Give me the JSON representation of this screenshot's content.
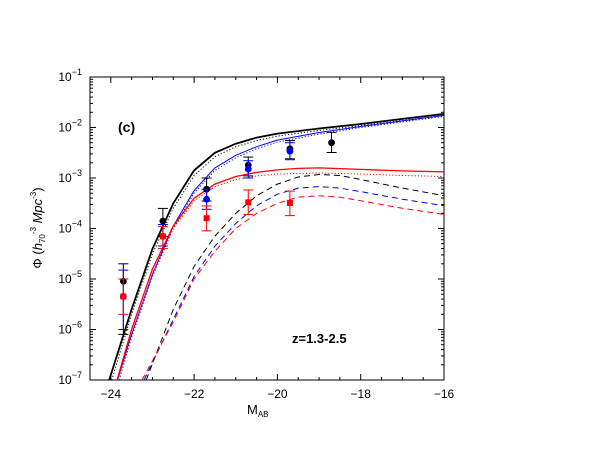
{
  "chart_data": {
    "type": "scatter",
    "panel_label": "(c)",
    "annotation": "z=1.3-2.5",
    "xlabel": {
      "main": "M",
      "sub": "AB"
    },
    "ylabel": {
      "parts": [
        "Φ (",
        "h",
        "70",
        "-3",
        " Mpc",
        "-3",
        ")"
      ]
    },
    "xlim": [
      -24.5,
      -16
    ],
    "ylim_log10": [
      -7,
      -1
    ],
    "y_scale": "log",
    "x_ticks": [
      -24,
      -22,
      -20,
      -18,
      -16
    ],
    "x_tick_labels": [
      "−24",
      "−22",
      "−20",
      "−18",
      "−16"
    ],
    "y_ticks_log10": [
      -7,
      -6,
      -5,
      -4,
      -3,
      -2,
      -1
    ],
    "y_tick_labels": [
      {
        "base": "10",
        "exp": "−7"
      },
      {
        "base": "10",
        "exp": "−6"
      },
      {
        "base": "10",
        "exp": "−5"
      },
      {
        "base": "10",
        "exp": "−4"
      },
      {
        "base": "10",
        "exp": "−3"
      },
      {
        "base": "10",
        "exp": "−2"
      },
      {
        "base": "10",
        "exp": "−1"
      }
    ],
    "grid": false,
    "colors": {
      "black": "#000000",
      "blue": "#0000ff",
      "red": "#ff0000"
    },
    "points": [
      {
        "color": "#000000",
        "marker": "circle",
        "data": [
          {
            "x": -23.7,
            "y": 9e-06,
            "lo": 8e-07,
            "hi": 2e-05
          },
          {
            "x": -22.75,
            "y": 0.00014,
            "lo": 7e-05,
            "hi": 0.00025
          },
          {
            "x": -21.7,
            "y": 0.0006,
            "lo": 0.00035,
            "hi": 0.001
          },
          {
            "x": -20.7,
            "y": 0.0018,
            "lo": 0.0011,
            "hi": 0.0026
          },
          {
            "x": -19.7,
            "y": 0.0038,
            "lo": 0.0024,
            "hi": 0.0055
          },
          {
            "x": -18.7,
            "y": 0.005,
            "lo": 0.0032,
            "hi": 0.008
          }
        ]
      },
      {
        "color": "#0000ff",
        "marker": "circle",
        "data": [
          {
            "x": -23.7,
            "y": 4.5e-06,
            "lo": 1e-06,
            "hi": 1.5e-05
          },
          {
            "x": -22.75,
            "y": 7e-05,
            "lo": 4.5e-05,
            "hi": 0.00012
          },
          {
            "x": -21.7,
            "y": 0.00038,
            "lo": 0.00024,
            "hi": 0.0006
          },
          {
            "x": -20.7,
            "y": 0.0015,
            "lo": 0.001,
            "hi": 0.0022
          },
          {
            "x": -19.7,
            "y": 0.0034,
            "lo": 0.0023,
            "hi": 0.005
          }
        ]
      },
      {
        "color": "#ff0000",
        "marker": "square",
        "data": [
          {
            "x": -23.7,
            "y": 4.5e-06,
            "lo": 2e-06,
            "hi": 1e-05
          },
          {
            "x": -22.75,
            "y": 7e-05,
            "lo": 4e-05,
            "hi": 0.00011
          },
          {
            "x": -21.7,
            "y": 0.00016,
            "lo": 9e-05,
            "hi": 0.00028
          },
          {
            "x": -20.7,
            "y": 0.00033,
            "lo": 0.00019,
            "hi": 0.00058
          },
          {
            "x": -19.7,
            "y": 0.00032,
            "lo": 0.00018,
            "hi": 0.00055
          }
        ]
      }
    ],
    "curves": [
      {
        "color": "#000000",
        "dash": "solid",
        "width": 1.8,
        "log10_points": [
          [
            -24.04,
            -7
          ],
          [
            -23.5,
            -5.6
          ],
          [
            -23,
            -4.4
          ],
          [
            -22.5,
            -3.5
          ],
          [
            -22,
            -2.85
          ],
          [
            -21.5,
            -2.5
          ],
          [
            -21,
            -2.32
          ],
          [
            -20.5,
            -2.2
          ],
          [
            -20,
            -2.12
          ],
          [
            -19,
            -2.02
          ],
          [
            -18,
            -1.93
          ],
          [
            -17,
            -1.83
          ],
          [
            -16,
            -1.73
          ]
        ]
      },
      {
        "color": "#000000",
        "dash": "dotted",
        "width": 1,
        "log10_points": [
          [
            -23.98,
            -7
          ],
          [
            -23.5,
            -5.7
          ],
          [
            -23,
            -4.5
          ],
          [
            -22.5,
            -3.6
          ],
          [
            -22,
            -2.95
          ],
          [
            -21.5,
            -2.58
          ],
          [
            -21,
            -2.38
          ],
          [
            -20.5,
            -2.26
          ],
          [
            -20,
            -2.17
          ],
          [
            -19,
            -2.06
          ],
          [
            -18,
            -1.96
          ],
          [
            -17,
            -1.86
          ],
          [
            -16,
            -1.76
          ]
        ]
      },
      {
        "color": "#0000ff",
        "dash": "solid",
        "width": 1,
        "log10_points": [
          [
            -23.84,
            -7
          ],
          [
            -23.5,
            -6.1
          ],
          [
            -23,
            -4.9
          ],
          [
            -22.5,
            -3.95
          ],
          [
            -22,
            -3.25
          ],
          [
            -21.5,
            -2.8
          ],
          [
            -21,
            -2.55
          ],
          [
            -20.5,
            -2.38
          ],
          [
            -20,
            -2.25
          ],
          [
            -19,
            -2.1
          ],
          [
            -18,
            -1.98
          ],
          [
            -17,
            -1.87
          ],
          [
            -16,
            -1.76
          ]
        ]
      },
      {
        "color": "#0000ff",
        "dash": "dotted",
        "width": 1,
        "log10_points": [
          [
            -23.8,
            -7
          ],
          [
            -23.5,
            -6.15
          ],
          [
            -23,
            -4.95
          ],
          [
            -22.5,
            -4.0
          ],
          [
            -22,
            -3.3
          ],
          [
            -21.5,
            -2.85
          ],
          [
            -21,
            -2.6
          ],
          [
            -20.5,
            -2.42
          ],
          [
            -20,
            -2.29
          ],
          [
            -19,
            -2.13
          ],
          [
            -18,
            -2.0
          ],
          [
            -17,
            -1.89
          ],
          [
            -16,
            -1.78
          ]
        ]
      },
      {
        "color": "#ff0000",
        "dash": "solid",
        "width": 1.3,
        "log10_points": [
          [
            -23.85,
            -7
          ],
          [
            -23.5,
            -6.0
          ],
          [
            -23,
            -4.8
          ],
          [
            -22.5,
            -3.95
          ],
          [
            -22,
            -3.4
          ],
          [
            -21.5,
            -3.12
          ],
          [
            -21,
            -2.97
          ],
          [
            -20.5,
            -2.89
          ],
          [
            -20,
            -2.84
          ],
          [
            -19.5,
            -2.81
          ],
          [
            -19,
            -2.8
          ],
          [
            -18,
            -2.83
          ],
          [
            -17,
            -2.86
          ],
          [
            -16,
            -2.88
          ]
        ]
      },
      {
        "color": "#ff0000",
        "dash": "dotted",
        "width": 1,
        "log10_points": [
          [
            -23.8,
            -7
          ],
          [
            -23.5,
            -6.1
          ],
          [
            -23,
            -4.9
          ],
          [
            -22.5,
            -4.0
          ],
          [
            -22,
            -3.45
          ],
          [
            -21.5,
            -3.17
          ],
          [
            -21,
            -3.03
          ],
          [
            -20.5,
            -2.96
          ],
          [
            -20,
            -2.92
          ],
          [
            -19,
            -2.9
          ],
          [
            -18,
            -2.92
          ],
          [
            -17,
            -2.95
          ],
          [
            -16,
            -2.97
          ]
        ]
      },
      {
        "color": "#000000",
        "dash": "dashed",
        "width": 1,
        "log10_points": [
          [
            -23.15,
            -7
          ],
          [
            -22.5,
            -5.6
          ],
          [
            -22,
            -4.75
          ],
          [
            -21.5,
            -4.15
          ],
          [
            -21,
            -3.7
          ],
          [
            -20.5,
            -3.35
          ],
          [
            -20,
            -3.12
          ],
          [
            -19.5,
            -2.98
          ],
          [
            -19,
            -2.93
          ],
          [
            -18.5,
            -2.95
          ],
          [
            -18,
            -3.03
          ],
          [
            -17,
            -3.2
          ],
          [
            -16,
            -3.35
          ]
        ]
      },
      {
        "color": "#0000ff",
        "dash": "dashed",
        "width": 1,
        "log10_points": [
          [
            -23.2,
            -7
          ],
          [
            -22.5,
            -5.8
          ],
          [
            -22,
            -4.95
          ],
          [
            -21.5,
            -4.35
          ],
          [
            -21,
            -3.9
          ],
          [
            -20.5,
            -3.55
          ],
          [
            -20,
            -3.32
          ],
          [
            -19.5,
            -3.2
          ],
          [
            -19,
            -3.17
          ],
          [
            -18.5,
            -3.2
          ],
          [
            -18,
            -3.27
          ],
          [
            -17,
            -3.42
          ],
          [
            -16,
            -3.55
          ]
        ]
      },
      {
        "color": "#ff0000",
        "dash": "dashed",
        "width": 1,
        "log10_points": [
          [
            -23.25,
            -7
          ],
          [
            -22.5,
            -5.85
          ],
          [
            -22,
            -5.0
          ],
          [
            -21.5,
            -4.45
          ],
          [
            -21,
            -4.0
          ],
          [
            -20.5,
            -3.7
          ],
          [
            -20,
            -3.5
          ],
          [
            -19.5,
            -3.38
          ],
          [
            -19,
            -3.35
          ],
          [
            -18.5,
            -3.38
          ],
          [
            -18,
            -3.45
          ],
          [
            -17,
            -3.6
          ],
          [
            -16,
            -3.72
          ]
        ]
      }
    ]
  }
}
